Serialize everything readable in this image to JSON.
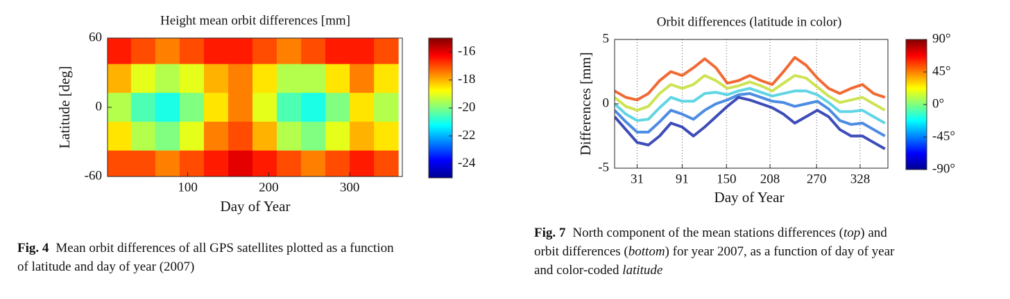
{
  "chart_data": [
    {
      "type": "heatmap",
      "title": "Height mean orbit differences [mm]",
      "xlabel": "Day of Year",
      "ylabel": "Latitude [deg]",
      "xlim": [
        1,
        365
      ],
      "xticks": [
        100,
        200,
        300
      ],
      "ylim": [
        -60,
        60
      ],
      "yticks": [
        -60,
        0,
        60
      ],
      "clim": [
        -25,
        -15
      ],
      "cticks": [
        -16,
        -18,
        -20,
        -22,
        -24
      ],
      "colormap": "jet",
      "x": [
        15,
        45,
        75,
        105,
        135,
        165,
        195,
        225,
        255,
        285,
        315,
        345
      ],
      "y": [
        50,
        25,
        0,
        -25,
        -50
      ],
      "values": [
        [
          -16.5,
          -17,
          -17.5,
          -17,
          -16.5,
          -16.5,
          -17,
          -17.5,
          -17,
          -16.5,
          -16.5,
          -17
        ],
        [
          -18,
          -19,
          -19.5,
          -19,
          -18,
          -17.5,
          -18.5,
          -19.5,
          -19.5,
          -18.5,
          -17.5,
          -18.5
        ],
        [
          -19.5,
          -20.5,
          -21,
          -20,
          -18.5,
          -17.5,
          -19,
          -20.5,
          -21,
          -20,
          -18.5,
          -19.5
        ],
        [
          -18.5,
          -19.5,
          -20,
          -19,
          -17.5,
          -17,
          -18,
          -19.5,
          -20,
          -19,
          -18,
          -18.5
        ],
        [
          -17,
          -17,
          -17.5,
          -17,
          -16.5,
          -16,
          -16.5,
          -17,
          -17.5,
          -17,
          -16.5,
          -17
        ]
      ]
    },
    {
      "type": "line",
      "title": "Orbit differences (latitude in color)",
      "xlabel": "Day of Year",
      "ylabel": "Differences [mm]",
      "xlim": [
        1,
        365
      ],
      "xticks": [
        31,
        91,
        150,
        208,
        270,
        328
      ],
      "ylim": [
        -5,
        5
      ],
      "yticks": [
        -5,
        0,
        5
      ],
      "grid": "x-dotted",
      "clim": [
        -90,
        90
      ],
      "colormap": "jet",
      "cticks": [
        {
          "value": 90,
          "label": "90°"
        },
        {
          "value": 45,
          "label": "45°"
        },
        {
          "value": 0,
          "label": "0°"
        },
        {
          "value": -45,
          "label": "-45°"
        },
        {
          "value": -90,
          "label": "-90°"
        }
      ],
      "x": [
        1,
        16,
        31,
        46,
        61,
        76,
        91,
        106,
        121,
        136,
        151,
        166,
        181,
        196,
        211,
        226,
        241,
        256,
        271,
        286,
        301,
        316,
        331,
        346,
        361
      ],
      "series": [
        {
          "color": "#f05a1e",
          "values": [
            1,
            0.5,
            0.3,
            0.8,
            1.8,
            2.5,
            2.2,
            2.8,
            3.5,
            2.8,
            1.6,
            1.8,
            2.2,
            1.8,
            1.5,
            2.5,
            3.6,
            3,
            2,
            1.2,
            0.8,
            1.2,
            1.5,
            0.8,
            0.5
          ]
        },
        {
          "color": "#c8e040",
          "values": [
            0.5,
            -0.2,
            -0.5,
            -0.2,
            0.8,
            1.5,
            1.2,
            1.5,
            2.2,
            1.8,
            1.2,
            1.4,
            1.7,
            1.4,
            1,
            1.6,
            2.2,
            2,
            1.3,
            0.6,
            0.1,
            0.3,
            0.5,
            0,
            -0.5
          ]
        },
        {
          "color": "#50d0e0",
          "values": [
            0,
            -0.8,
            -1.3,
            -1.2,
            -0.3,
            0.5,
            0.2,
            0.2,
            0.8,
            0.9,
            0.7,
            1,
            1.2,
            0.9,
            0.6,
            0.8,
            1,
            1,
            0.7,
            0.1,
            -0.6,
            -0.6,
            -0.5,
            -1,
            -1.5
          ]
        },
        {
          "color": "#3a80e0",
          "values": [
            -0.5,
            -1.4,
            -2.2,
            -2.2,
            -1.4,
            -0.5,
            -0.8,
            -1.2,
            -0.5,
            0,
            0.3,
            0.7,
            0.8,
            0.5,
            0.2,
            0.1,
            -0.2,
            0,
            0.2,
            -0.4,
            -1.3,
            -1.6,
            -1.5,
            -2,
            -2.5
          ]
        },
        {
          "color": "#2838b0",
          "values": [
            -1,
            -2,
            -3,
            -3.2,
            -2.5,
            -1.5,
            -1.8,
            -2.5,
            -1.8,
            -1,
            -0.2,
            0.5,
            0.3,
            0,
            -0.3,
            -0.8,
            -1.5,
            -1,
            -0.5,
            -1,
            -2,
            -2.5,
            -2.5,
            -3,
            -3.5
          ]
        }
      ]
    }
  ],
  "captions": [
    {
      "label": "Fig. 4",
      "lines": [
        "Mean orbit differences of all GPS satellites plotted as a function",
        "of latitude and day of year (2007)"
      ]
    },
    {
      "label": "Fig. 7",
      "parts": [
        "North component of the mean stations differences (",
        "top",
        ") and",
        "orbit differences (",
        "bottom",
        ") for year 2007, as a function of day of year",
        "and color-coded ",
        "latitude"
      ]
    }
  ]
}
